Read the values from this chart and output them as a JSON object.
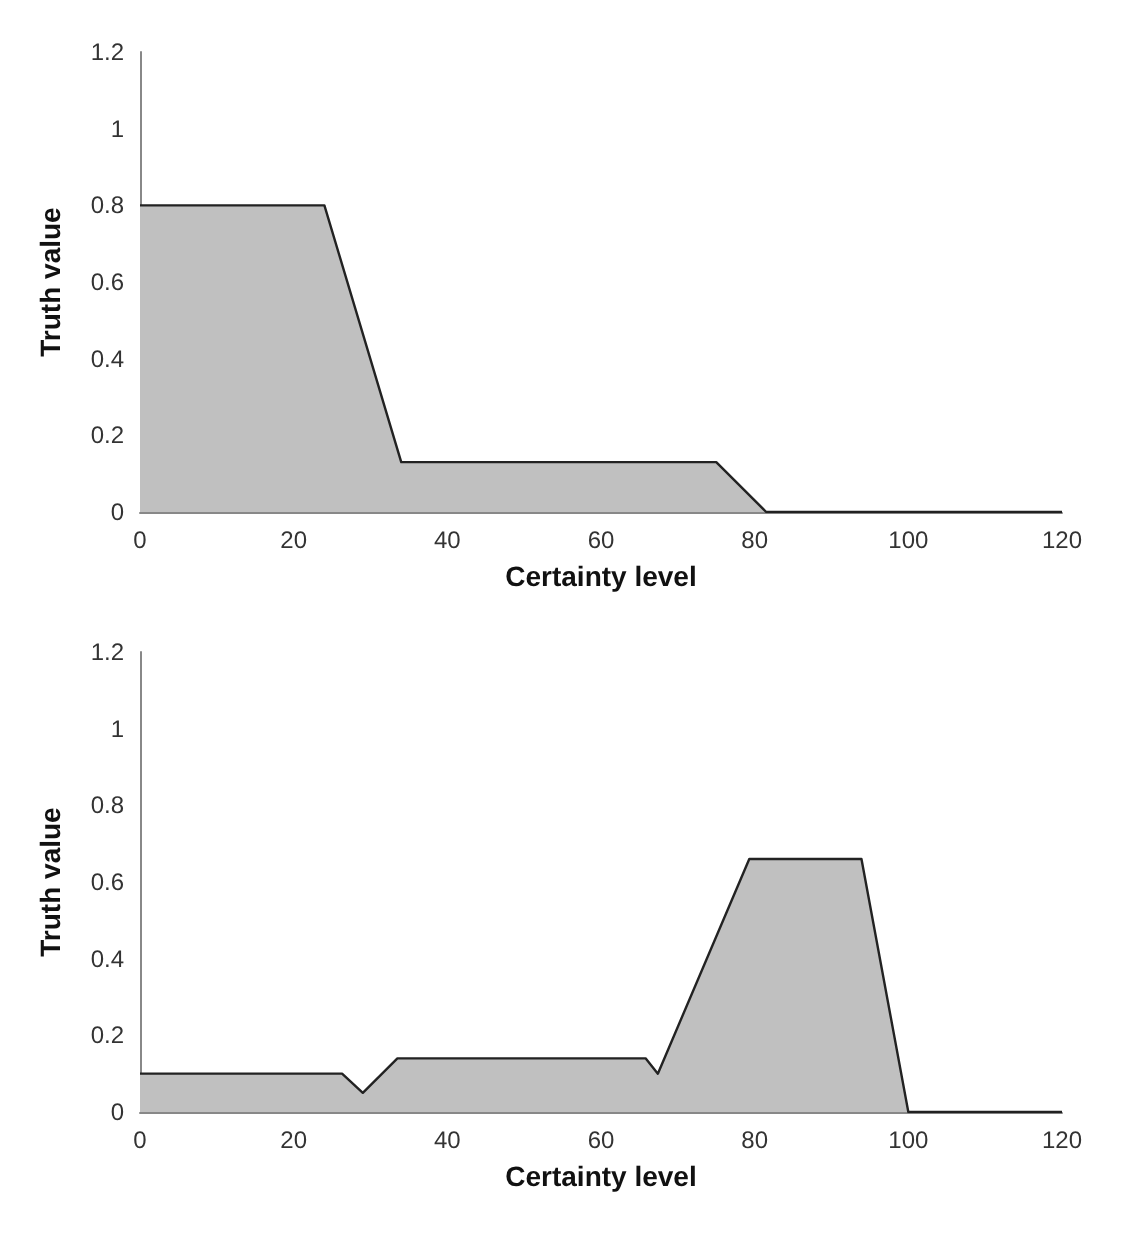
{
  "chart_data": [
    {
      "type": "area",
      "xlabel": "Certainty level",
      "ylabel": "Truth value",
      "xlim": [
        0,
        120
      ],
      "xticks": [
        0,
        20,
        40,
        60,
        80,
        100,
        120
      ],
      "ylim": [
        0,
        1.2
      ],
      "yticks": [
        0,
        0.2,
        0.4,
        0.6,
        0.8,
        1,
        1.2
      ],
      "grid": false,
      "series": [
        {
          "color": "#c0c0c0",
          "x": [
            0,
            24,
            34,
            75,
            81.5,
            120
          ],
          "values": [
            0.8,
            0.8,
            0.13,
            0.13,
            0,
            0
          ]
        }
      ]
    },
    {
      "type": "area",
      "xlabel": "Certainty level",
      "ylabel": "Truth value",
      "xlim": [
        0,
        120
      ],
      "xticks": [
        0,
        20,
        40,
        60,
        80,
        100,
        120
      ],
      "ylim": [
        0,
        1.2
      ],
      "yticks": [
        0,
        0.2,
        0.4,
        0.6,
        0.8,
        1,
        1.2
      ],
      "grid": false,
      "series": [
        {
          "color": "#c0c0c0",
          "x": [
            0,
            26.3,
            29,
            33.5,
            65.8,
            67.4,
            79.3,
            93.9,
            100,
            120
          ],
          "values": [
            0.1,
            0.1,
            0.05,
            0.14,
            0.14,
            0.1,
            0.66,
            0.66,
            0,
            0
          ]
        }
      ]
    }
  ]
}
